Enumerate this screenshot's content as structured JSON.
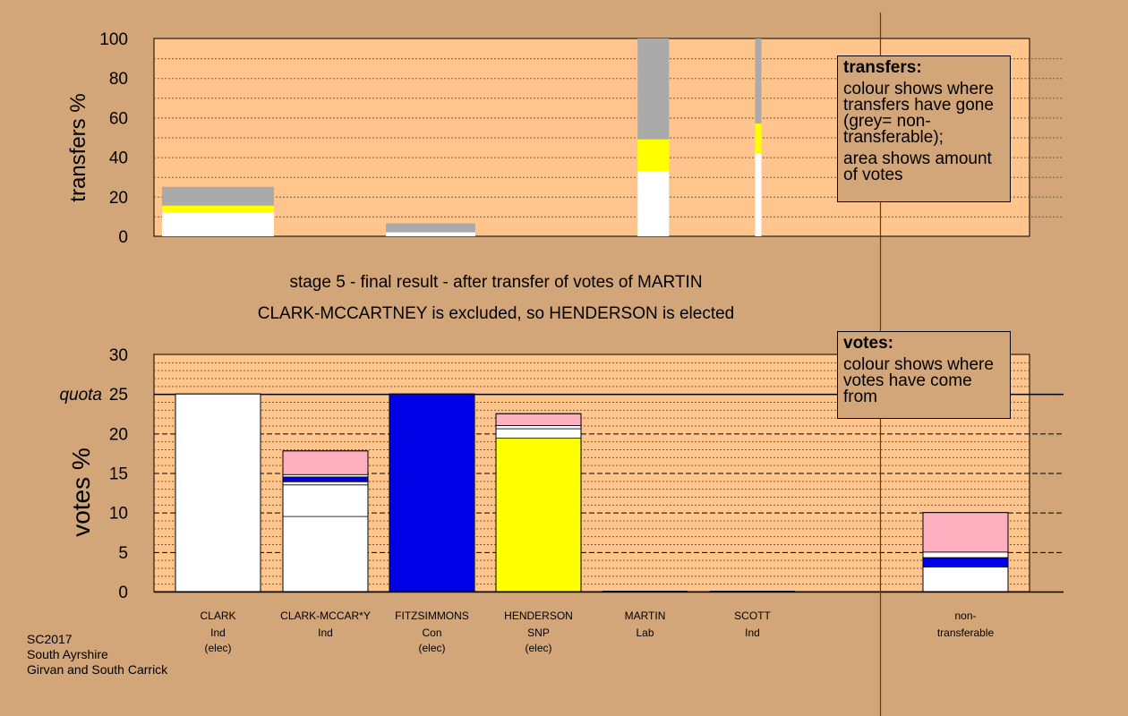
{
  "stage_text": "stage 5 - final result - after transfer of votes of MARTIN",
  "result_text": "CLARK-MCCARTNEY is excluded, so HENDERSON is elected",
  "legend_transfers": {
    "title": "transfers:",
    "line1": "colour shows where transfers have gone (grey= non-transferable);",
    "line2": "area shows amount of votes"
  },
  "legend_votes": {
    "title": "votes:",
    "line1": "colour shows where votes have come from"
  },
  "footer": {
    "line1": "SC2017",
    "line2": "South Ayrshire",
    "line3": "Girvan and South Carrick"
  },
  "colors": {
    "background": "#d2a679",
    "plot": "#ffc58c",
    "white": "#ffffff",
    "blue": "#0000e6",
    "yellow": "#ffff00",
    "pink": "#ffb0c0",
    "grey": "#aaaaaa"
  },
  "chart_data": [
    {
      "type": "bar",
      "ylabel": "transfers %",
      "ylim": [
        0,
        100
      ],
      "yticks": [
        0,
        20,
        40,
        60,
        80,
        100
      ],
      "grid": true,
      "bars": [
        {
          "x": 0,
          "width": 1.0,
          "segments": [
            {
              "color": "white",
              "value": 12
            },
            {
              "color": "yellow",
              "value": 3.5
            },
            {
              "color": "grey",
              "value": 9.5
            }
          ]
        },
        {
          "x": 2,
          "width": 0.8,
          "segments": [
            {
              "color": "white",
              "value": 2
            },
            {
              "color": "grey",
              "value": 4.5
            }
          ]
        },
        {
          "x": 4.25,
          "width": 0.28,
          "segments": [
            {
              "color": "white",
              "value": 33
            },
            {
              "color": "yellow",
              "value": 16
            },
            {
              "color": "grey",
              "value": 51
            }
          ]
        },
        {
          "x": 5.3,
          "width": 0.05,
          "segments": [
            {
              "color": "white",
              "value": 42
            },
            {
              "color": "yellow",
              "value": 15
            },
            {
              "color": "grey",
              "value": 43
            }
          ]
        }
      ]
    },
    {
      "type": "bar",
      "ylabel": "votes %",
      "ylim": [
        0,
        30
      ],
      "yticks": [
        0,
        5,
        10,
        15,
        20,
        25,
        30
      ],
      "quota": 25,
      "quota_label": "quota",
      "grid": true,
      "candidates": [
        {
          "name": "CLARK",
          "party": "Ind",
          "note": "(elec)",
          "segments": [
            {
              "color": "white",
              "value": 25
            }
          ]
        },
        {
          "name": "CLARK-MCCAR*Y",
          "party": "Ind",
          "note": "",
          "segments": [
            {
              "color": "white",
              "value": 9.5
            },
            {
              "color": "white",
              "value": 4.0
            },
            {
              "color": "white",
              "value": 0.4
            },
            {
              "color": "blue",
              "value": 0.6
            },
            {
              "color": "white",
              "value": 0.3
            },
            {
              "color": "pink",
              "value": 3.0
            }
          ]
        },
        {
          "name": "FITZSIMMONS",
          "party": "Con",
          "note": "(elec)",
          "segments": [
            {
              "color": "blue",
              "value": 25
            }
          ]
        },
        {
          "name": "HENDERSON",
          "party": "SNP",
          "note": "(elec)",
          "segments": [
            {
              "color": "yellow",
              "value": 19.4
            },
            {
              "color": "white",
              "value": 1.2
            },
            {
              "color": "white",
              "value": 0.4
            },
            {
              "color": "pink",
              "value": 1.5
            }
          ]
        },
        {
          "name": "MARTIN",
          "party": "Lab",
          "note": "",
          "segments": []
        },
        {
          "name": "SCOTT",
          "party": "Ind",
          "note": "",
          "segments": []
        },
        {
          "name": "non-",
          "party": "transferable",
          "note": "",
          "segments": [
            {
              "color": "white",
              "value": 3.1
            },
            {
              "color": "blue",
              "value": 1.2
            },
            {
              "color": "white",
              "value": 0.7
            },
            {
              "color": "pink",
              "value": 5.0
            }
          ]
        }
      ]
    }
  ]
}
